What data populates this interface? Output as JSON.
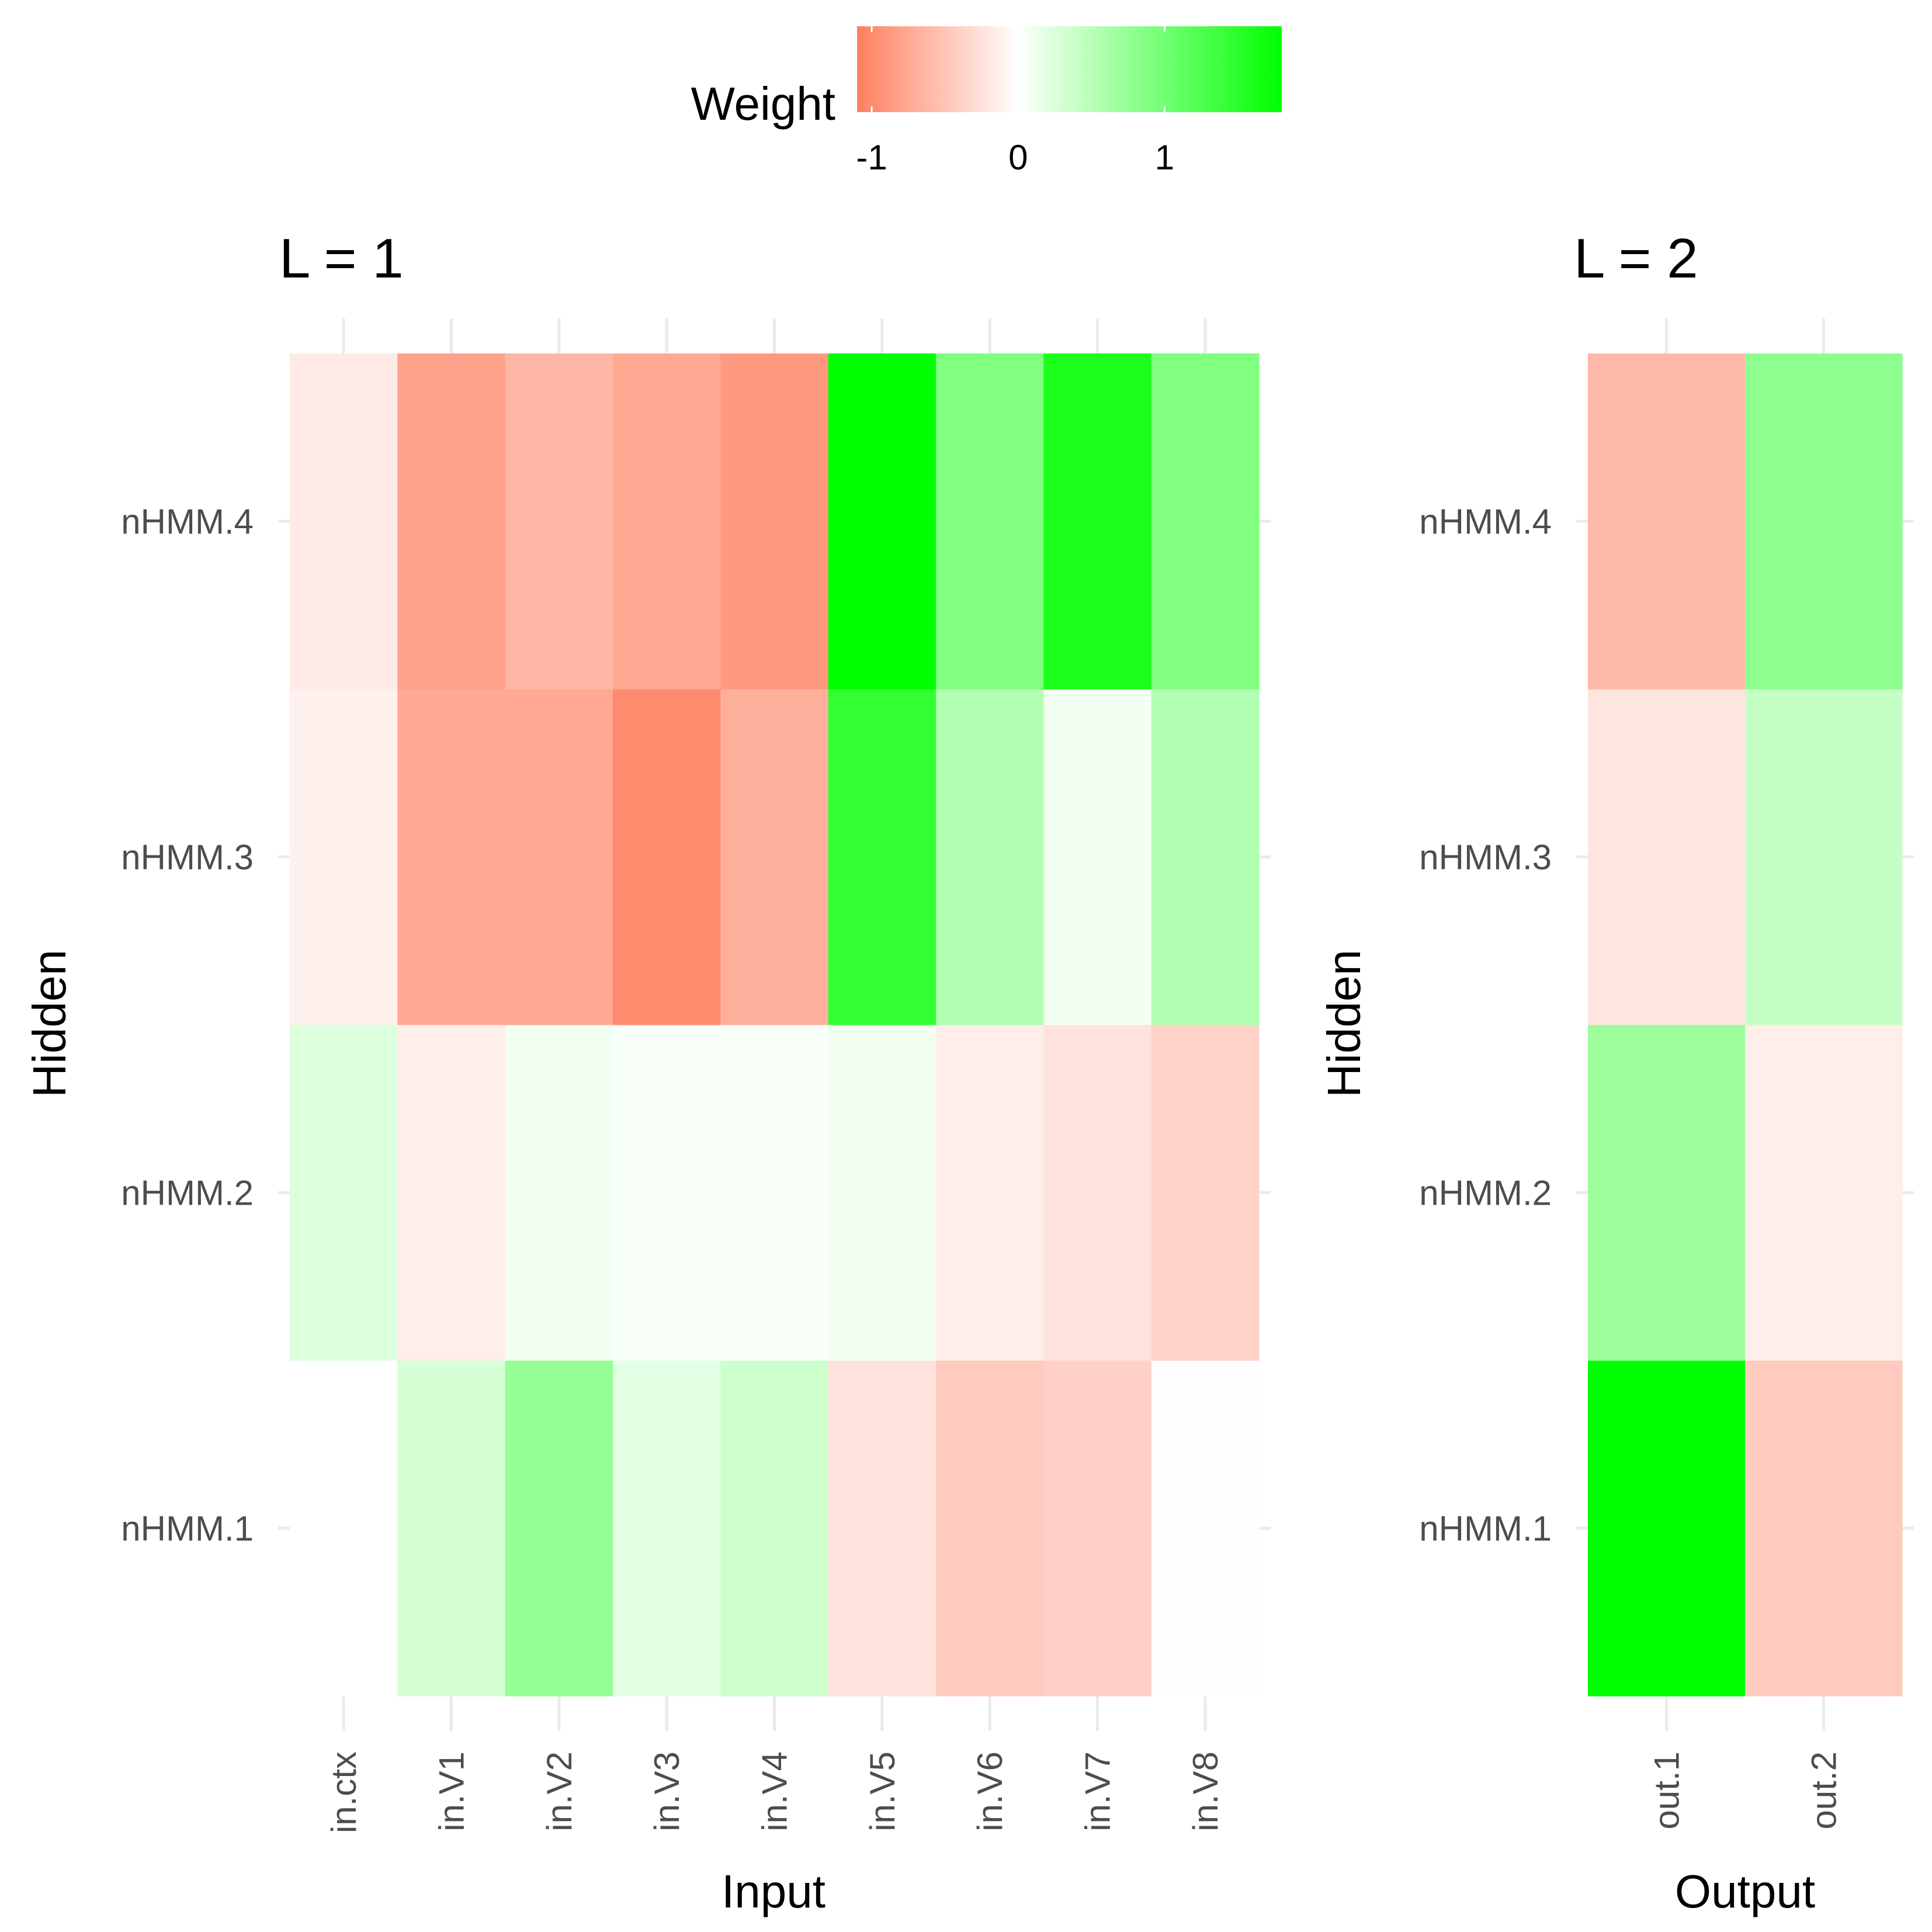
{
  "legend": {
    "title": "Weight",
    "ticks": [
      "-1",
      "0",
      "1"
    ],
    "tick_values": [
      -1,
      0,
      1
    ],
    "range": [
      -1.1,
      1.8
    ],
    "low_color": "#ff7f5f",
    "mid_color": "#ffffff",
    "high_color": "#00ff00"
  },
  "chart_data": [
    {
      "type": "heatmap",
      "title": "L = 1",
      "xlabel": "Input",
      "ylabel": "Hidden",
      "x": [
        "in.ctx",
        "in.V1",
        "in.V2",
        "in.V3",
        "in.V4",
        "in.V5",
        "in.V6",
        "in.V7",
        "in.V8"
      ],
      "y": [
        "nHMM.1",
        "nHMM.2",
        "nHMM.3",
        "nHMM.4"
      ],
      "values": [
        [
          0.0,
          0.3,
          0.75,
          0.2,
          0.35,
          -0.25,
          -0.45,
          -0.4,
          -0.01
        ],
        [
          0.25,
          -0.15,
          0.1,
          0.05,
          0.05,
          0.1,
          -0.15,
          -0.25,
          -0.38
        ],
        [
          -0.12,
          -0.75,
          -0.75,
          -1.0,
          -0.68,
          1.45,
          0.55,
          0.08,
          0.55
        ],
        [
          -0.18,
          -0.8,
          -0.62,
          -0.75,
          -0.87,
          1.8,
          0.9,
          1.6,
          0.9
        ]
      ]
    },
    {
      "type": "heatmap",
      "title": "L = 2",
      "xlabel": "Output",
      "ylabel": "Hidden",
      "x": [
        "out.1",
        "out.2"
      ],
      "y": [
        "nHMM.1",
        "nHMM.2",
        "nHMM.3",
        "nHMM.4"
      ],
      "values": [
        [
          1.8,
          -0.45
        ],
        [
          0.7,
          -0.15
        ],
        [
          -0.22,
          0.4
        ],
        [
          -0.6,
          0.8
        ]
      ]
    }
  ]
}
